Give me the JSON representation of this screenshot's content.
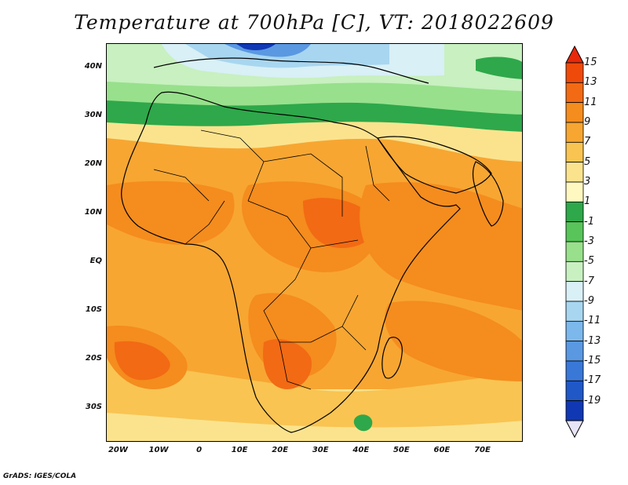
{
  "title": "Temperature at 700hPa [C], VT: 2018022609",
  "footer": "GrADS: IGES/COLA",
  "map": {
    "region": "Africa",
    "variable": "Temperature at 700hPa",
    "units": "C",
    "lon_range": [
      -23,
      80
    ],
    "lat_range": [
      -37,
      45
    ],
    "y_ticks": [
      {
        "label": "40N",
        "lat": 40
      },
      {
        "label": "30N",
        "lat": 30
      },
      {
        "label": "20N",
        "lat": 20
      },
      {
        "label": "10N",
        "lat": 10
      },
      {
        "label": "EQ",
        "lat": 0
      },
      {
        "label": "10S",
        "lat": -10
      },
      {
        "label": "20S",
        "lat": -20
      },
      {
        "label": "30S",
        "lat": -30
      }
    ],
    "x_ticks": [
      {
        "label": "20W",
        "lon": -20
      },
      {
        "label": "10W",
        "lon": -10
      },
      {
        "label": "0",
        "lon": 0
      },
      {
        "label": "10E",
        "lon": 10
      },
      {
        "label": "20E",
        "lon": 20
      },
      {
        "label": "30E",
        "lon": 30
      },
      {
        "label": "40E",
        "lon": 40
      },
      {
        "label": "50E",
        "lon": 50
      },
      {
        "label": "60E",
        "lon": 60
      },
      {
        "label": "70E",
        "lon": 70
      }
    ]
  },
  "colorbar": {
    "labels": [
      "15",
      "13",
      "11",
      "9",
      "7",
      "5",
      "3",
      "1",
      "-1",
      "-3",
      "-5",
      "-7",
      "-9",
      "-11",
      "-13",
      "-15",
      "-17",
      "-19"
    ],
    "colors": [
      "#e8280a",
      "#f04a0a",
      "#f26a14",
      "#f58c1e",
      "#f7a632",
      "#f9c452",
      "#fbe38e",
      "#fff8c0",
      "#2ea84a",
      "#58c45a",
      "#98e08c",
      "#c8f0c0",
      "#d8f0f6",
      "#a8d6f0",
      "#7cb8ec",
      "#5a98e2",
      "#3a78d8",
      "#2058c8",
      "#1038b4",
      "#06108a"
    ]
  }
}
